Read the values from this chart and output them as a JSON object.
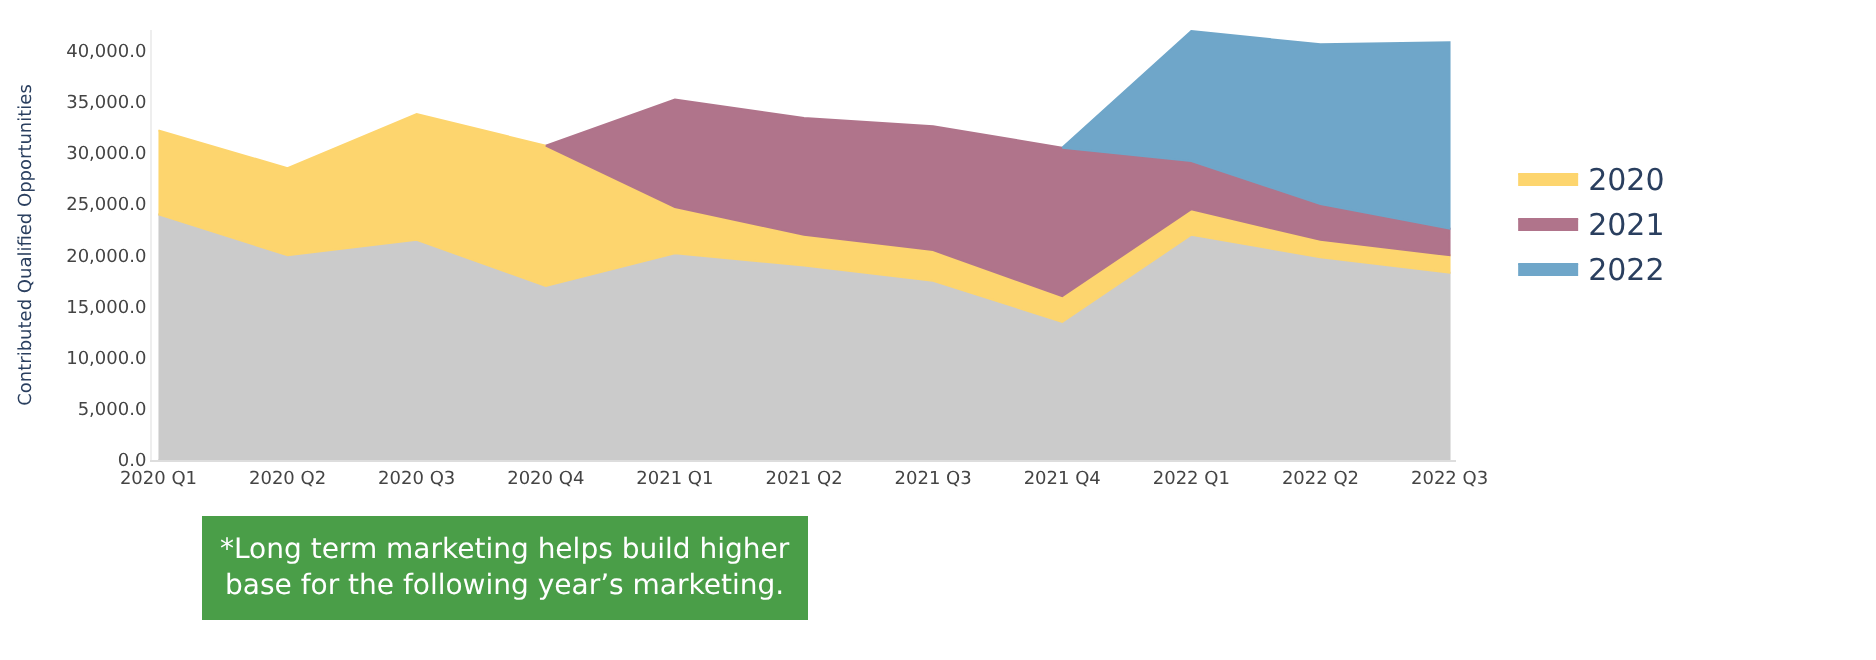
{
  "chart_data": {
    "type": "area",
    "stacked": true,
    "ylabel": "Contributed Qualified Opportunities",
    "categories": [
      "2020 Q1",
      "2020 Q2",
      "2020 Q3",
      "2020 Q4",
      "2021 Q1",
      "2021 Q2",
      "2021 Q3",
      "2021 Q4",
      "2022 Q1",
      "2022 Q2",
      "2022 Q3"
    ],
    "series": [
      {
        "color": "#cbcbcb",
        "values": [
          24000,
          20000,
          21500,
          17000,
          20200,
          19000,
          17500,
          13500,
          22000,
          19800,
          18300
        ]
      },
      {
        "name": "2020",
        "color": "#fdd56e",
        "values": [
          8200,
          8500,
          12300,
          13700,
          4500,
          3000,
          3000,
          2500,
          2500,
          1700,
          1700
        ]
      },
      {
        "name": "2021",
        "color": "#b0748b",
        "values": [
          null,
          null,
          null,
          0,
          10500,
          11400,
          12100,
          14500,
          4700,
          3500,
          2600
        ]
      },
      {
        "name": "2022",
        "color": "#6fa6c9",
        "values": [
          null,
          null,
          null,
          null,
          null,
          null,
          null,
          0,
          12700,
          15600,
          18200
        ]
      }
    ],
    "ylim": [
      0,
      42000
    ],
    "yticks": [
      {
        "value": 0,
        "label": "0.0"
      },
      {
        "value": 5000,
        "label": "5,000.0"
      },
      {
        "value": 10000,
        "label": "10,000.0"
      },
      {
        "value": 15000,
        "label": "15,000.0"
      },
      {
        "value": 20000,
        "label": "20,000.0"
      },
      {
        "value": 25000,
        "label": "25,000.0"
      },
      {
        "value": 30000,
        "label": "30,000.0"
      },
      {
        "value": 35000,
        "label": "35,000.0"
      },
      {
        "value": 40000,
        "label": "40,000.0"
      }
    ],
    "legend": "right",
    "annotations": [
      "*Long term marketing helps build higher\nbase for the following year’s marketing."
    ]
  }
}
